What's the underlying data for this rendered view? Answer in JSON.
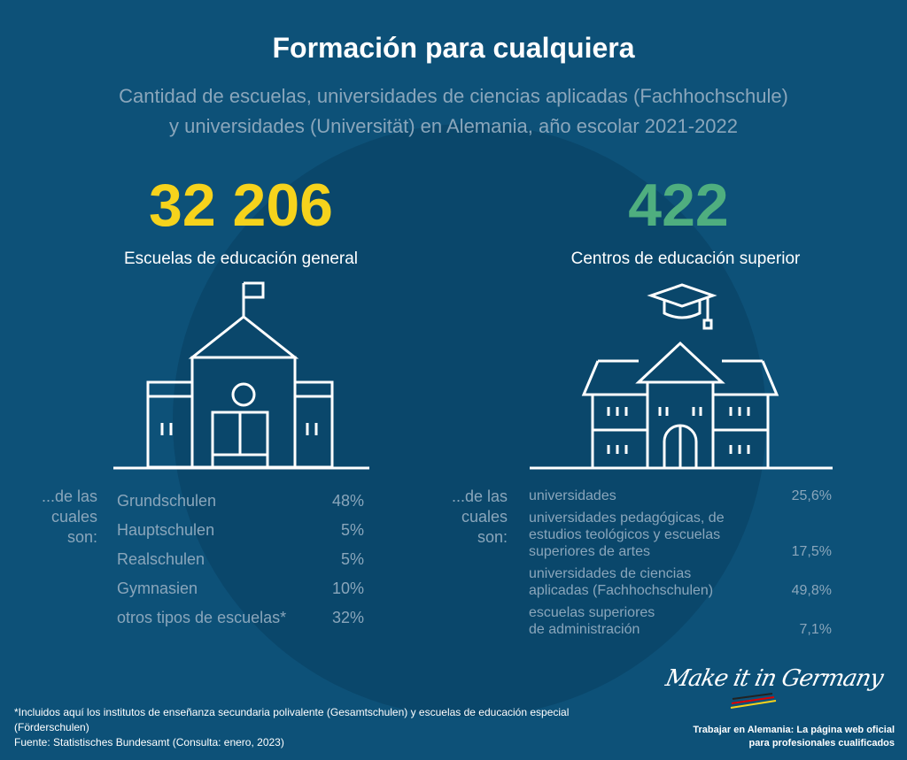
{
  "title": "Formación para cualquiera",
  "subtitle": [
    "Cantidad de escuelas, universidades de ciencias aplicadas (Fachhochschule)",
    "y universidades (Universität) en Alemania, año escolar 2021-2022"
  ],
  "left": {
    "number": "32 206",
    "label": "Escuelas de educación general",
    "of_which": [
      "...de las",
      "cuales",
      "son:"
    ],
    "rows": [
      {
        "name": "Grundschulen",
        "pct": "48%"
      },
      {
        "name": "Hauptschulen",
        "pct": "5%"
      },
      {
        "name": "Realschulen",
        "pct": "5%"
      },
      {
        "name": "Gymnasien",
        "pct": "10%"
      },
      {
        "name": "otros tipos de escuelas*",
        "pct": "32%"
      }
    ]
  },
  "right": {
    "number": "422",
    "label": "Centros de educación superior",
    "of_which": [
      "...de las",
      "cuales",
      "son:"
    ],
    "rows": [
      {
        "name": "universidades",
        "pct": "25,6%"
      },
      {
        "name": "universidades pedagógicas, de estudios teológicos y escuelas superiores de artes",
        "pct": "17,5%"
      },
      {
        "name": "universidades de ciencias aplicadas (Fachhochschulen)",
        "pct": "49,8%"
      },
      {
        "name": "escuelas superiores de administración",
        "pct": "7,1%"
      }
    ]
  },
  "footnote": "*Incluidos aquí los institutos de enseñanza secundaria polivalente (Gesamtschulen) y escuelas de educación especial (Förderschulen)",
  "source": "Fuente: Statistisches Bundesamt (Consulta: enero, 2023)",
  "brand": {
    "logo": "Make it in Germany",
    "tagline1": "Trabajar en Alemania: La página web oficial",
    "tagline2": "para profesionales cualificados"
  },
  "colors": {
    "yellow": "#f6d31c",
    "green": "#4fae7f"
  }
}
